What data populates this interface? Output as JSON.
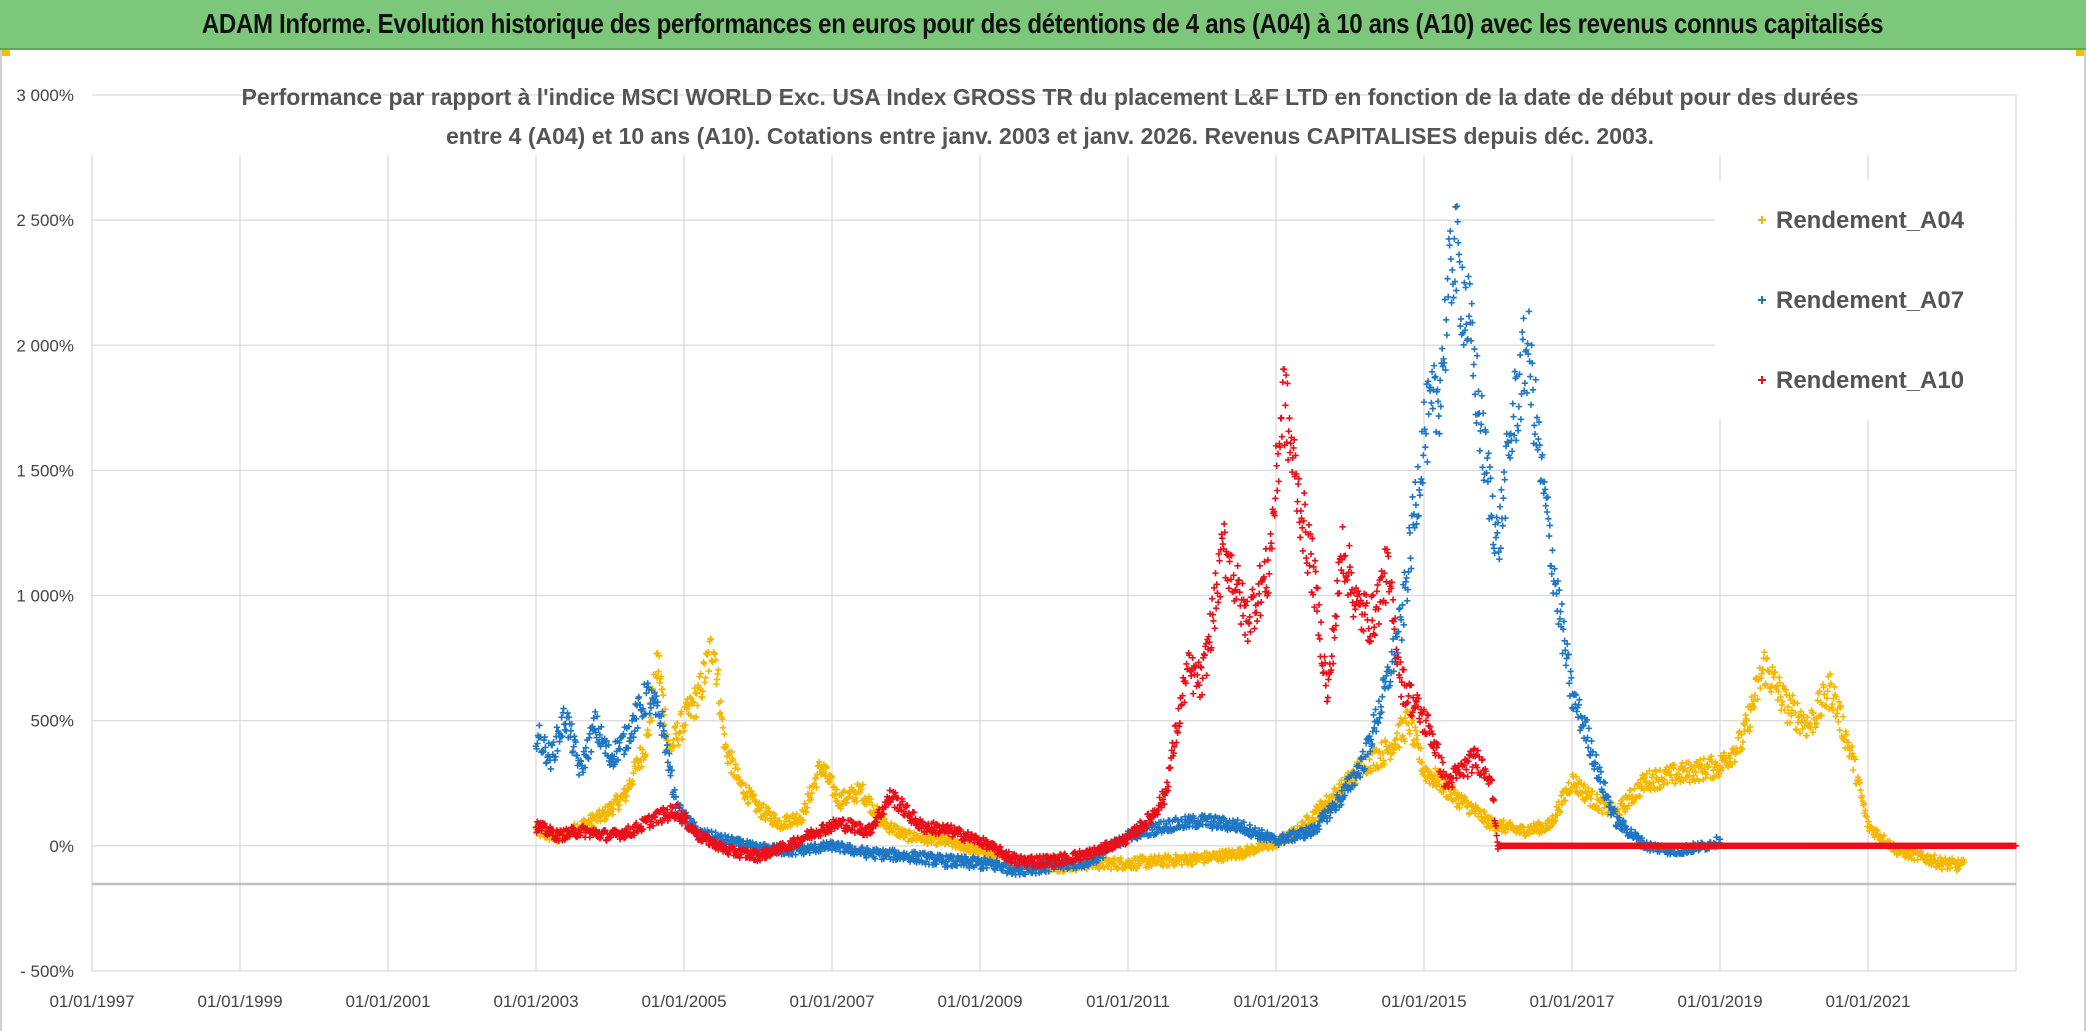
{
  "banner": {
    "title": "ADAM Informe. Evolution historique des performances en euros pour des détentions de 4 ans (A04) à 10 ans (A10) avec les revenus connus capitalisés"
  },
  "colors": {
    "banner_bg": "#7dc77a",
    "A04": "#f5b800",
    "A07": "#1f77c4",
    "A10": "#e8101a",
    "grid": "#d9d9d9",
    "zero_line": "#bfbfbf"
  },
  "chart_data": {
    "type": "scatter",
    "title_lines": [
      "Performance  par rapport à l'indice MSCI WORLD Exc. USA Index GROSS TR  du placement L&F LTD en fonction de la date de début pour des durées",
      "entre 4 (A04) et 10 ans (A10). Cotations entre janv. 2003 et janv. 2026. Revenus CAPITALISES depuis déc. 2003."
    ],
    "x_tick_labels": [
      "01/01/1997",
      "01/01/1999",
      "01/01/2001",
      "01/01/2003",
      "01/01/2005",
      "01/01/2007",
      "01/01/2009",
      "01/01/2011",
      "01/01/2013",
      "01/01/2015",
      "01/01/2017",
      "01/01/2019",
      "01/01/2021"
    ],
    "x_tick_years": [
      1997,
      1999,
      2001,
      2003,
      2005,
      2007,
      2009,
      2011,
      2013,
      2015,
      2017,
      2019,
      2021
    ],
    "xlim": [
      1997.0,
      2023.0
    ],
    "y_tick_labels": [
      "- 500%",
      "0%",
      "500%",
      "1 000%",
      "1 500%",
      "2 000%",
      "2 500%",
      "3 000%"
    ],
    "y_tick_values": [
      -500,
      0,
      500,
      1000,
      1500,
      2000,
      2500,
      3000
    ],
    "ylim": [
      -500,
      3000
    ],
    "ylabel": "",
    "xlabel": "",
    "legend_position": "top-right",
    "series": [
      {
        "name": "Rendement_A04",
        "color": "#f5b800",
        "x": [
          2003.0,
          2003.3,
          2003.6,
          2003.9,
          2004.2,
          2004.5,
          2004.65,
          2004.8,
          2005.0,
          2005.2,
          2005.4,
          2005.55,
          2005.75,
          2006.0,
          2006.3,
          2006.6,
          2006.85,
          2007.1,
          2007.4,
          2007.7,
          2008.0,
          2008.5,
          2009.0,
          2009.5,
          2010.0,
          2010.5,
          2011.0,
          2011.5,
          2012.0,
          2012.5,
          2013.0,
          2013.3,
          2013.6,
          2013.9,
          2014.2,
          2014.5,
          2014.8,
          2015.0,
          2015.2,
          2015.4,
          2015.6,
          2015.9,
          2016.3,
          2016.7,
          2017.0,
          2017.3,
          2017.6,
          2018.0,
          2018.5,
          2019.0,
          2019.3,
          2019.6,
          2019.9,
          2020.2,
          2020.5,
          2020.8,
          2021.0,
          2021.4,
          2021.8,
          2022.0,
          2022.3
        ],
        "values": [
          60,
          30,
          80,
          120,
          200,
          420,
          740,
          380,
          500,
          600,
          820,
          400,
          250,
          150,
          90,
          120,
          320,
          180,
          220,
          90,
          40,
          20,
          -20,
          -60,
          -80,
          -70,
          -70,
          -60,
          -50,
          -30,
          10,
          60,
          150,
          230,
          330,
          380,
          500,
          300,
          260,
          200,
          160,
          90,
          60,
          80,
          260,
          180,
          130,
          260,
          290,
          320,
          420,
          720,
          560,
          480,
          630,
          340,
          80,
          -20,
          -50,
          -70,
          -80
        ]
      },
      {
        "name": "Rendement_A07",
        "color": "#1f77c4",
        "x": [
          2003.0,
          2003.2,
          2003.4,
          2003.6,
          2003.8,
          2004.0,
          2004.2,
          2004.5,
          2004.7,
          2004.9,
          2005.2,
          2005.6,
          2006.0,
          2006.5,
          2007.0,
          2007.5,
          2008.0,
          2008.5,
          2009.0,
          2009.5,
          2010.0,
          2010.5,
          2011.0,
          2011.5,
          2012.0,
          2012.5,
          2013.0,
          2013.5,
          2013.9,
          2014.2,
          2014.5,
          2014.7,
          2015.0,
          2015.2,
          2015.4,
          2015.6,
          2015.8,
          2016.0,
          2016.2,
          2016.4,
          2016.6,
          2016.8,
          2017.0,
          2017.2,
          2017.4,
          2017.6,
          2017.8,
          2018.0,
          2018.4,
          2018.8,
          2019.0
        ],
        "values": [
          450,
          350,
          520,
          300,
          480,
          350,
          420,
          600,
          500,
          150,
          50,
          20,
          -10,
          -20,
          0,
          -30,
          -40,
          -60,
          -70,
          -90,
          -80,
          -60,
          40,
          80,
          100,
          80,
          20,
          60,
          200,
          350,
          650,
          900,
          1650,
          1800,
          2400,
          2100,
          1600,
          1200,
          1700,
          2000,
          1450,
          1000,
          600,
          450,
          250,
          100,
          50,
          0,
          -20,
          0,
          20
        ]
      },
      {
        "name": "Rendement_A10",
        "color": "#e8101a",
        "x": [
          2003.0,
          2003.3,
          2003.6,
          2004.0,
          2004.3,
          2004.6,
          2004.9,
          2005.2,
          2005.6,
          2006.0,
          2006.4,
          2006.8,
          2007.1,
          2007.5,
          2007.8,
          2008.2,
          2008.6,
          2009.0,
          2009.5,
          2010.0,
          2010.5,
          2011.0,
          2011.3,
          2011.5,
          2011.8,
          2012.0,
          2012.3,
          2012.6,
          2012.9,
          2013.1,
          2013.3,
          2013.5,
          2013.7,
          2013.9,
          2014.1,
          2014.3,
          2014.5,
          2014.7,
          2014.9,
          2015.1,
          2015.3,
          2015.5,
          2015.7,
          2015.9,
          2016.0
        ],
        "values": [
          80,
          40,
          60,
          40,
          60,
          110,
          140,
          40,
          -20,
          -40,
          0,
          60,
          90,
          60,
          200,
          80,
          60,
          20,
          -60,
          -60,
          -30,
          30,
          110,
          200,
          700,
          650,
          1200,
          900,
          1100,
          1800,
          1400,
          1100,
          600,
          1200,
          950,
          900,
          1100,
          650,
          550,
          450,
          250,
          300,
          350,
          280,
          0
        ]
      }
    ],
    "flat_zero_segment": {
      "series": "Rendement_A10",
      "x_start": 2016.0,
      "x_end": 2023.0,
      "value": 0
    }
  }
}
